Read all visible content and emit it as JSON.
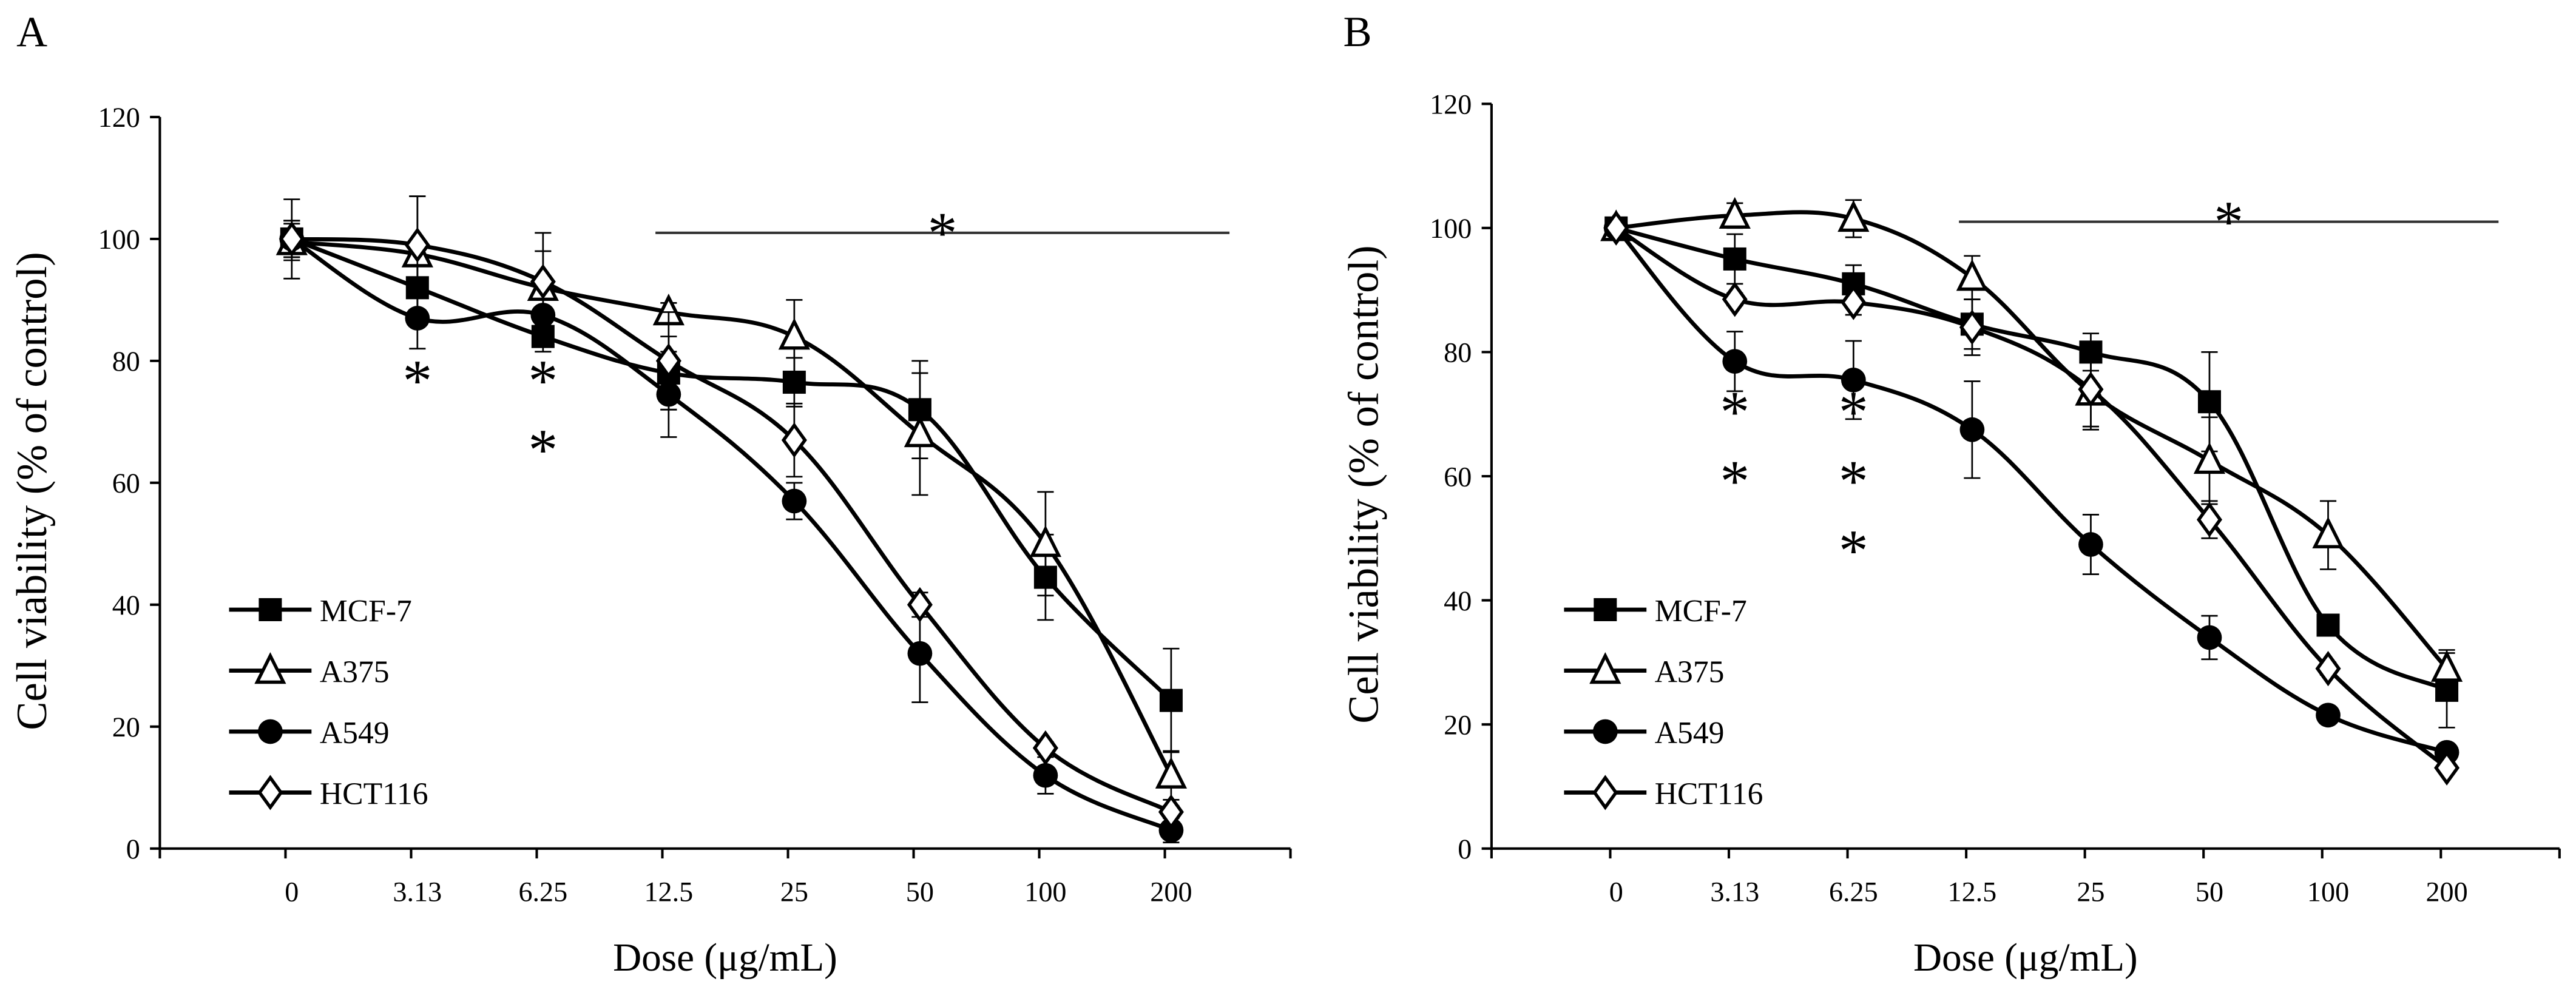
{
  "chart_data": [
    {
      "panel_label": "A",
      "type": "line",
      "xlabel": "Dose (μg/mL)",
      "ylabel": "Cell viability (% of control)",
      "categories": [
        "0",
        "3.13",
        "6.25",
        "12.5",
        "25",
        "50",
        "100",
        "200"
      ],
      "ylim": [
        0,
        120
      ],
      "yticks": [
        "0",
        "20",
        "40",
        "60",
        "80",
        "100",
        "120"
      ],
      "grid": false,
      "legend_position": "bottom-left",
      "series": [
        {
          "name": "MCF-7",
          "marker": "square-filled",
          "values": [
            100,
            92,
            84,
            78,
            76.5,
            72,
            44.5,
            24.3
          ],
          "errors": [
            3,
            4,
            2.5,
            6,
            4,
            8,
            7,
            8.5
          ]
        },
        {
          "name": "A375",
          "marker": "triangle-open",
          "values": [
            99.5,
            97.5,
            92,
            88,
            84,
            68,
            50,
            12
          ],
          "errors": [
            3,
            9.5,
            6,
            1.5,
            6,
            10,
            8.5,
            4
          ]
        },
        {
          "name": "A549",
          "marker": "circle-filled",
          "values": [
            100,
            87,
            87.5,
            74.5,
            57,
            32,
            12,
            3
          ],
          "errors": [
            3,
            5,
            2.5,
            7,
            3,
            8,
            3,
            2
          ]
        },
        {
          "name": "HCT116",
          "marker": "diamond-open",
          "values": [
            100,
            99,
            93,
            80,
            67,
            40,
            16.5,
            6
          ],
          "errors": [
            6.5,
            8,
            8,
            8,
            6,
            2,
            1,
            1
          ]
        }
      ],
      "significance": {
        "marks": [
          {
            "category": "3.13",
            "label": "*"
          },
          {
            "category": "6.25",
            "label": "*"
          },
          {
            "category": "6.25",
            "label": "*"
          }
        ],
        "bar_label": "*",
        "bar_from": "12.5"
      }
    },
    {
      "panel_label": "B",
      "type": "line",
      "xlabel": "Dose (μg/mL)",
      "ylabel": "Cell viability (% of control)",
      "categories": [
        "0",
        "3.13",
        "6.25",
        "12.5",
        "25",
        "50",
        "100",
        "200"
      ],
      "ylim": [
        0,
        120
      ],
      "yticks": [
        "0",
        "20",
        "40",
        "60",
        "80",
        "100",
        "120"
      ],
      "grid": false,
      "legend_position": "bottom-left",
      "series": [
        {
          "name": "MCF-7",
          "marker": "square-filled",
          "values": [
            100,
            95,
            91,
            84.5,
            80,
            72,
            36,
            25.5
          ],
          "errors": [
            0.5,
            4,
            3,
            4,
            3,
            8,
            1,
            6
          ]
        },
        {
          "name": "A375",
          "marker": "triangle-open",
          "values": [
            100,
            102,
            101.5,
            92,
            73.5,
            62.5,
            50.5,
            29
          ],
          "errors": [
            0.5,
            2,
            3,
            3.5,
            6,
            7,
            5.5,
            3
          ]
        },
        {
          "name": "A549",
          "marker": "circle-filled",
          "values": [
            100,
            78.5,
            75.5,
            67.5,
            49,
            34,
            21.5,
            15.5
          ],
          "errors": [
            0.5,
            4.8,
            6.3,
            7.8,
            4.8,
            3.5,
            0.5,
            1
          ]
        },
        {
          "name": "HCT116",
          "marker": "diamond-open",
          "values": [
            100,
            88.5,
            88,
            84,
            74,
            53,
            29,
            13
          ],
          "errors": [
            0.5,
            1,
            2,
            4.5,
            6,
            3,
            1,
            0.5
          ]
        }
      ],
      "significance": {
        "marks": [
          {
            "category": "3.13",
            "label": "*"
          },
          {
            "category": "3.13",
            "label": "*"
          },
          {
            "category": "6.25",
            "label": "*"
          },
          {
            "category": "6.25",
            "label": "*"
          },
          {
            "category": "6.25",
            "label": "*"
          }
        ],
        "bar_label": "*",
        "bar_from": "12.5"
      }
    }
  ]
}
